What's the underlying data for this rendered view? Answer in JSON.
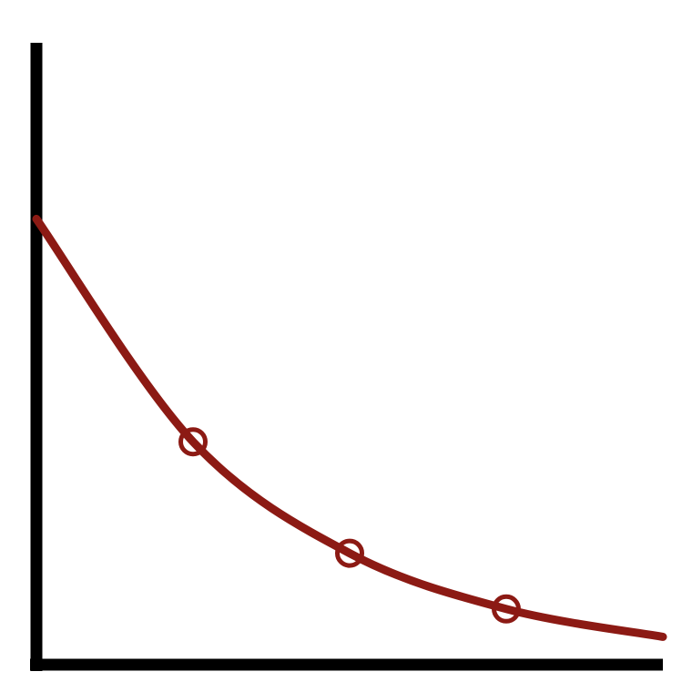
{
  "chart_data": {
    "type": "line",
    "x": [
      0,
      25,
      50,
      75,
      100
    ],
    "series": [
      {
        "color": "#8c1a14",
        "values": [
          72,
          36,
          18,
          9,
          4.5
        ],
        "markers": [
          false,
          true,
          true,
          true,
          false
        ]
      }
    ],
    "xlim": [
      0,
      100
    ],
    "ylim": [
      0,
      100
    ]
  }
}
